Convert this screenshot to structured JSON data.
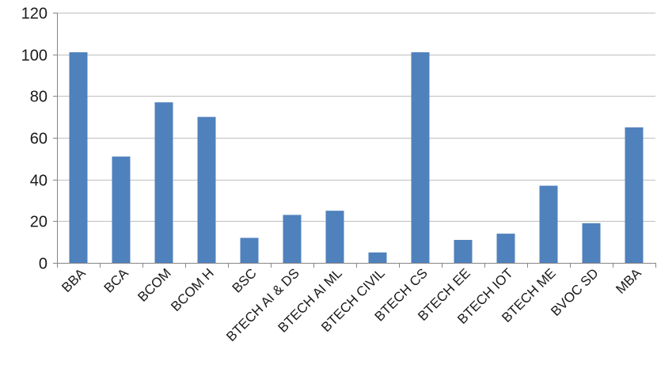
{
  "chart_data": {
    "type": "bar",
    "title": "",
    "xlabel": "",
    "ylabel": "",
    "categories": [
      "BBA",
      "BCA",
      "BCOM",
      "BCOM H",
      "BSC",
      "BTECH AI & DS",
      "BTECH AI ML",
      "BTECH CIVIL",
      "BTECH CS",
      "BTECH EE",
      "BTECH IOT",
      "BTECH ME",
      "BVOC SD",
      "MBA"
    ],
    "values": [
      101,
      51,
      77,
      70,
      12,
      23,
      25,
      5,
      101,
      11,
      14,
      37,
      19,
      65
    ],
    "ylim": [
      0,
      120
    ],
    "yticks": [
      0,
      20,
      40,
      60,
      80,
      100,
      120
    ],
    "grid": true,
    "legend": "none",
    "colors": {
      "bar": "#4F81BD",
      "bar_edge": "#3A6A9E",
      "grid": "#BFBFBF",
      "axis": "#868686"
    }
  }
}
